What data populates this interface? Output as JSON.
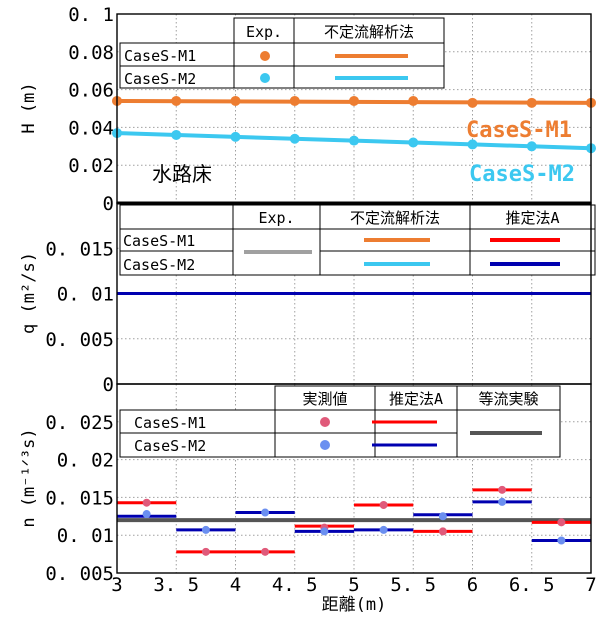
{
  "chart_data": [
    {
      "type": "line",
      "ylabel": "H (m)",
      "xlim": [
        3,
        7
      ],
      "ylim": [
        0,
        0.1
      ],
      "yticks": [
        "0",
        "0.02",
        "0.04",
        "0.06",
        "0.08",
        "0. 1"
      ],
      "legend": {
        "headers": [
          "Exp.",
          "不定流解析法"
        ],
        "rows": [
          "CaseS-M1",
          "CaseS-M2"
        ]
      },
      "series": [
        {
          "name": "CaseS-M1",
          "label": "CaseS-M1",
          "color": "#ed7d31",
          "points": [
            [
              3.0,
              0.054
            ],
            [
              3.5,
              0.054
            ],
            [
              4.0,
              0.054
            ],
            [
              4.5,
              0.054
            ],
            [
              5.0,
              0.054
            ],
            [
              5.5,
              0.054
            ],
            [
              6.0,
              0.053
            ],
            [
              6.5,
              0.053
            ],
            [
              7.0,
              0.053
            ]
          ],
          "line": [
            [
              3.0,
              0.054
            ],
            [
              7.0,
              0.053
            ]
          ]
        },
        {
          "name": "CaseS-M2",
          "label": "CaseS-M2",
          "color": "#3cc8f0",
          "points": [
            [
              3.0,
              0.037
            ],
            [
              3.5,
              0.036
            ],
            [
              4.0,
              0.035
            ],
            [
              4.5,
              0.034
            ],
            [
              5.0,
              0.033
            ],
            [
              5.5,
              0.032
            ],
            [
              6.0,
              0.031
            ],
            [
              6.5,
              0.03
            ],
            [
              7.0,
              0.029
            ]
          ],
          "line": [
            [
              3.0,
              0.037
            ],
            [
              4.0,
              0.035
            ],
            [
              5.0,
              0.033
            ],
            [
              6.0,
              0.031
            ],
            [
              7.0,
              0.029
            ]
          ]
        },
        {
          "name": "水路床",
          "label": "水路床",
          "color": "#000000",
          "line": [
            [
              3.0,
              0.0
            ],
            [
              7.0,
              0.0
            ]
          ]
        }
      ]
    },
    {
      "type": "line",
      "ylabel": "q (m²/s)",
      "xlim": [
        3,
        7
      ],
      "ylim": [
        0,
        0.02
      ],
      "yticks": [
        "0",
        "0. 005",
        "0. 01",
        "0. 015"
      ],
      "legend": {
        "headers": [
          "Exp.",
          "不定流解析法",
          "推定法A"
        ],
        "rows": [
          "CaseS-M1",
          "CaseS-M2"
        ]
      },
      "series": [
        {
          "name": "推定法A",
          "color": "#0000b0",
          "line": [
            [
              3.0,
              0.01
            ],
            [
              7.0,
              0.01
            ]
          ]
        }
      ]
    },
    {
      "type": "step",
      "ylabel": "n (m⁻¹ᐟ³s)",
      "xlabel": "距離(m)",
      "xlim": [
        3,
        7
      ],
      "ylim": [
        0.005,
        0.03
      ],
      "xticks": [
        "3",
        "3. 5",
        "4",
        "4. 5",
        "5",
        "5. 5",
        "6",
        "6. 5",
        "7"
      ],
      "yticks": [
        "0. 005",
        "0. 01",
        "0. 015",
        "0. 02",
        "0. 025"
      ],
      "legend": {
        "headers": [
          "実測値",
          "推定法A",
          "等流実験"
        ],
        "rows": [
          "CaseS-M1",
          "CaseS-M2"
        ]
      },
      "series": [
        {
          "name": "CaseS-M1 実測値",
          "color": "#e05a7a",
          "points": [
            [
              3.25,
              0.0143
            ],
            [
              3.75,
              0.0078
            ],
            [
              4.25,
              0.0078
            ],
            [
              4.75,
              0.011
            ],
            [
              5.25,
              0.014
            ],
            [
              5.75,
              0.0105
            ],
            [
              6.25,
              0.016
            ],
            [
              6.75,
              0.0117
            ]
          ]
        },
        {
          "name": "CaseS-M2 実測値",
          "color": "#6b8ff0",
          "points": [
            [
              3.25,
              0.0128
            ],
            [
              3.75,
              0.0107
            ],
            [
              4.25,
              0.013
            ],
            [
              4.75,
              0.0105
            ],
            [
              5.25,
              0.0107
            ],
            [
              5.75,
              0.0125
            ],
            [
              6.25,
              0.0144
            ],
            [
              6.75,
              0.0093
            ]
          ]
        },
        {
          "name": "CaseS-M1 推定法A",
          "color": "#ff0000",
          "steps": [
            [
              3.0,
              3.5,
              0.0143
            ],
            [
              3.5,
              4.5,
              0.0078
            ],
            [
              4.5,
              5.0,
              0.0112
            ],
            [
              5.0,
              5.5,
              0.014
            ],
            [
              5.5,
              6.0,
              0.0105
            ],
            [
              6.0,
              6.5,
              0.016
            ],
            [
              6.5,
              7.0,
              0.0117
            ]
          ]
        },
        {
          "name": "CaseS-M2 推定法A",
          "color": "#0000b0",
          "steps": [
            [
              3.0,
              3.5,
              0.0125
            ],
            [
              3.5,
              4.0,
              0.0107
            ],
            [
              4.0,
              4.5,
              0.013
            ],
            [
              4.5,
              5.0,
              0.0105
            ],
            [
              5.0,
              5.5,
              0.0107
            ],
            [
              5.5,
              6.0,
              0.0127
            ],
            [
              6.0,
              6.5,
              0.0144
            ],
            [
              6.5,
              7.0,
              0.0093
            ]
          ]
        },
        {
          "name": "等流実験",
          "color": "#555555",
          "line": [
            [
              3.0,
              0.012
            ],
            [
              7.0,
              0.012
            ]
          ]
        }
      ]
    }
  ]
}
